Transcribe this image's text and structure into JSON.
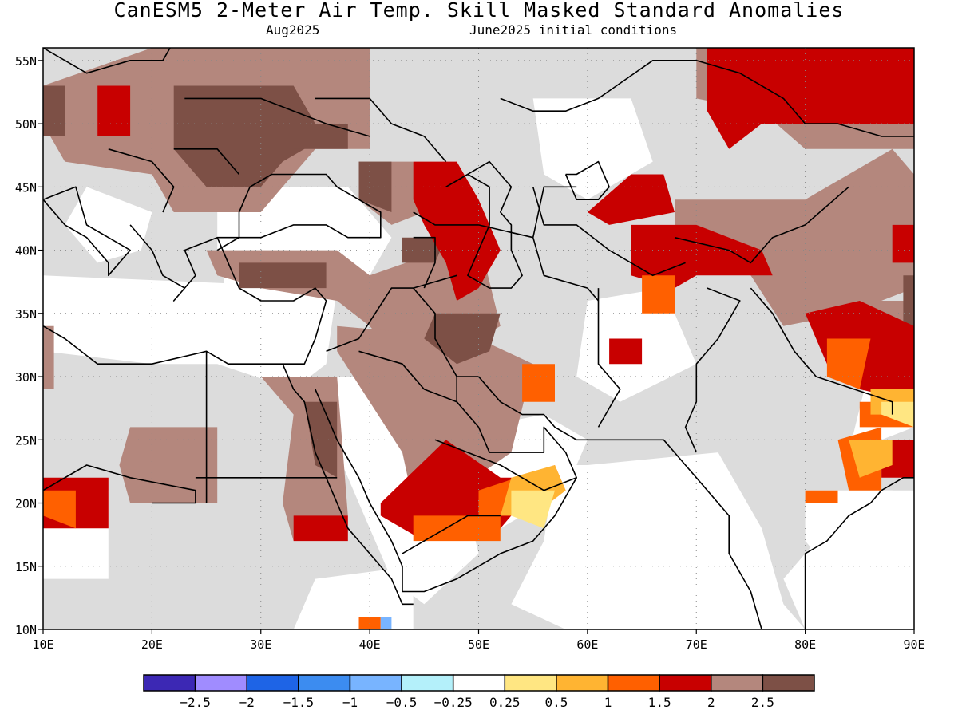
{
  "header": {
    "title": "CanESM5 2-Meter Air Temp. Skill Masked Standard Anomalies",
    "valid_month": "Aug2025",
    "initial_conditions": "June2025 initial conditions"
  },
  "map": {
    "region": {
      "lon_min": 10,
      "lon_max": 90,
      "lat_min": 10,
      "lat_max": 56
    },
    "lat_labels": [
      "55N",
      "50N",
      "45N",
      "40N",
      "35N",
      "30N",
      "25N",
      "20N",
      "15N",
      "10N"
    ],
    "lat_values": [
      55,
      50,
      45,
      40,
      35,
      30,
      25,
      20,
      15,
      10
    ],
    "lon_labels": [
      "10E",
      "20E",
      "30E",
      "40E",
      "50E",
      "60E",
      "70E",
      "80E",
      "90E"
    ],
    "lon_values": [
      10,
      20,
      30,
      40,
      50,
      60,
      70,
      80,
      90
    ],
    "colors": {
      "masked": "#dcdcdc",
      "cat_1_1_5": "#ff6000",
      "cat_1_5_2": "#c80000",
      "cat_2_2_5": "#b4877d",
      "cat_gt_2_5": "#7d5046",
      "cat_0_5_1": "#ffb432",
      "cat_0_25_0_5": "#ffe682",
      "cat_neg_0_5": "#78b4ff",
      "coast": "#000000"
    }
  },
  "colorbar": {
    "colors": [
      "#3c28b4",
      "#a08cff",
      "#1e64e6",
      "#3c8cf0",
      "#78b4ff",
      "#b4f0fa",
      "#ffffff",
      "#ffe682",
      "#ffb432",
      "#ff6000",
      "#c80000",
      "#b4877d",
      "#7d5046"
    ],
    "labels": [
      "−2.5",
      "−2",
      "−1.5",
      "−1",
      "−0.5",
      "−0.25",
      "0.25",
      "0.5",
      "1",
      "1.5",
      "2",
      "2.5"
    ]
  }
}
